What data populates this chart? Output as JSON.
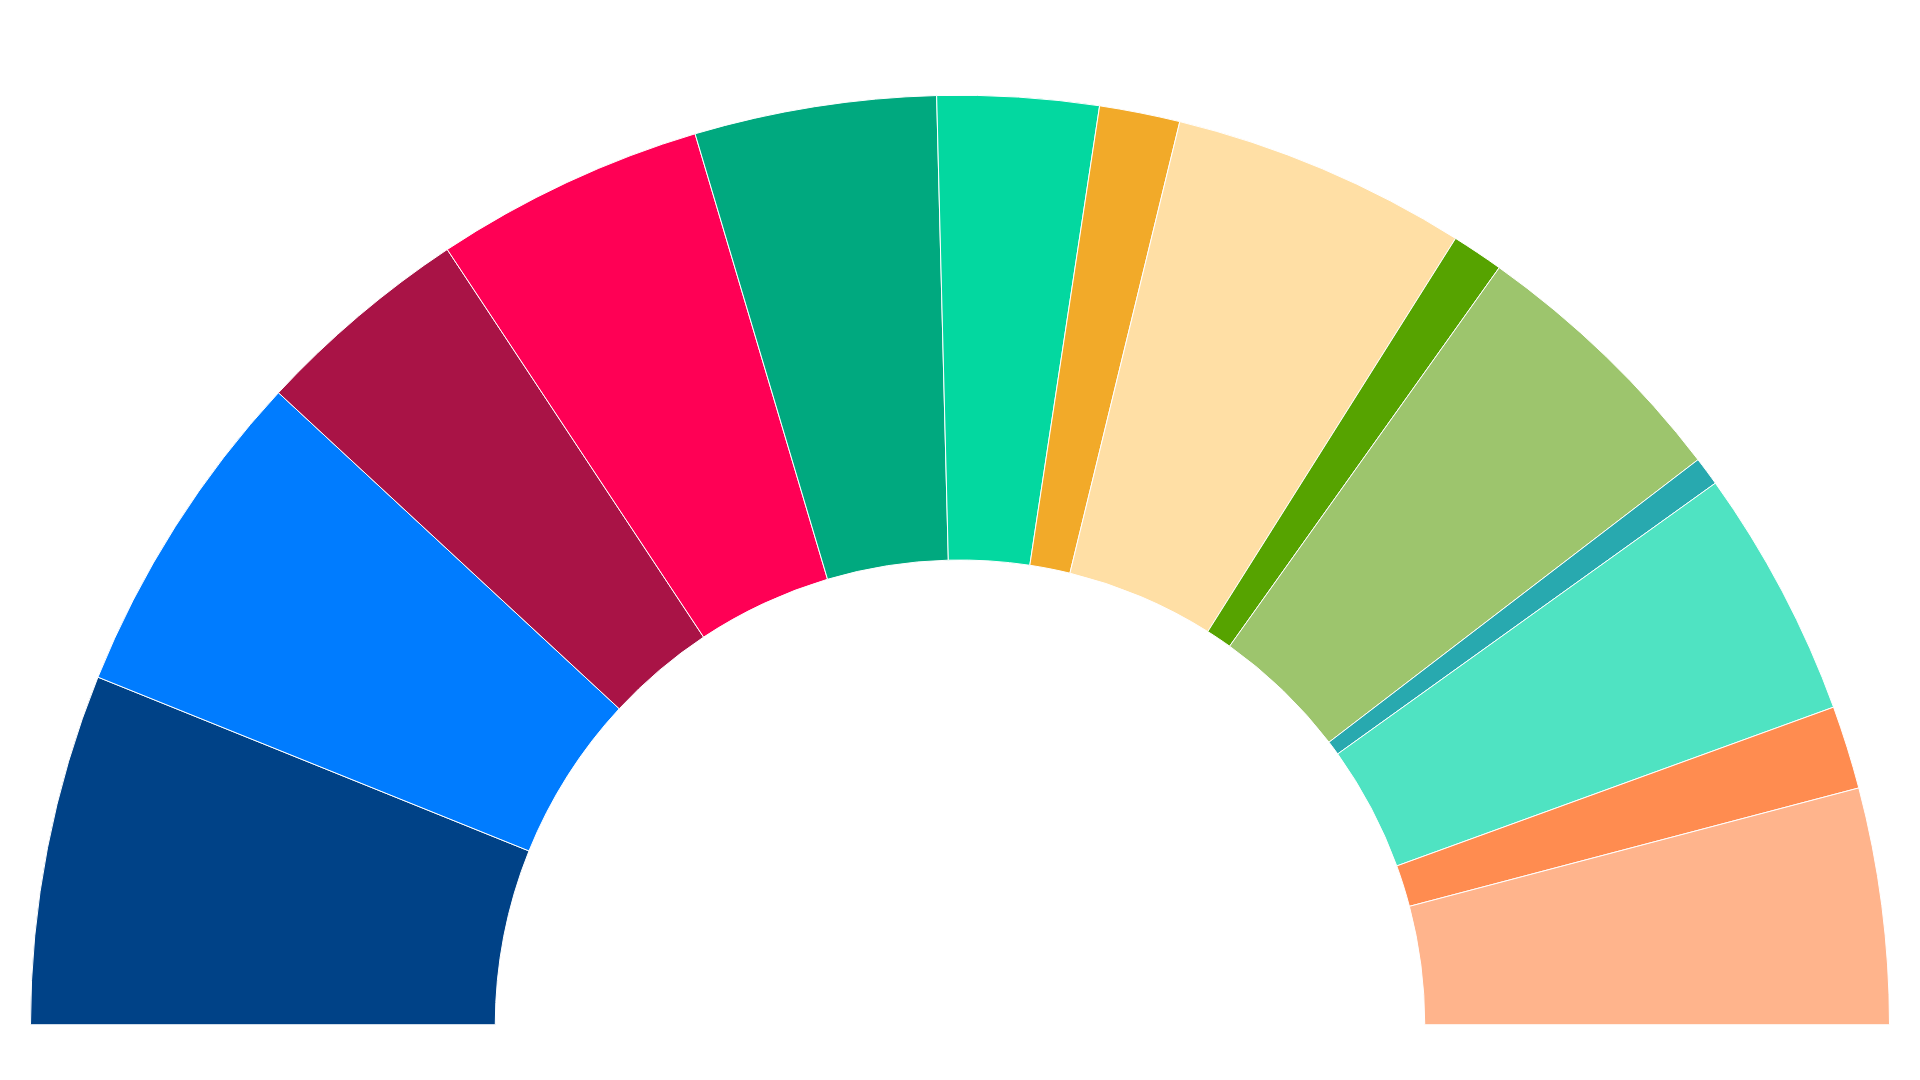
{
  "chart_data": {
    "type": "donut",
    "categories": [
      null,
      null,
      null,
      null,
      null,
      null,
      null,
      null,
      null,
      null,
      null,
      null,
      null,
      null
    ],
    "values": [
      12.2,
      11.6,
      7.6,
      9.4,
      8.4,
      5.6,
      2.8,
      10.3,
      1.8,
      9.5,
      1.0,
      8.7,
      2.9,
      8.2
    ],
    "colors": [
      "#004287",
      "#007cff",
      "#a91346",
      "#ff0055",
      "#00a97f",
      "#03d8a0",
      "#f2aa29",
      "#ffdfa5",
      "#56a300",
      "#9dc56d",
      "#28a9af",
      "#4fe3c2",
      "#ff8c50",
      "#ffb48c"
    ],
    "legend": false
  }
}
